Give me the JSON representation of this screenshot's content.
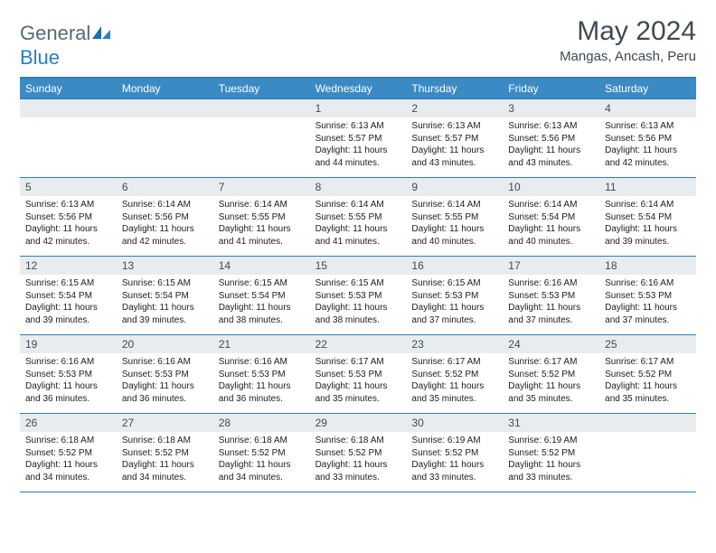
{
  "logo": {
    "part1": "General",
    "part2": "Blue"
  },
  "title": "May 2024",
  "subtitle": "Mangas, Ancash, Peru",
  "colors": {
    "header_bg": "#3b8ac4",
    "header_text": "#ffffff",
    "border": "#2a7fbf",
    "daynum_bg": "#e9ecee",
    "text": "#404a52",
    "info_text": "#1c1c1c",
    "background": "#ffffff"
  },
  "day_names": [
    "Sunday",
    "Monday",
    "Tuesday",
    "Wednesday",
    "Thursday",
    "Friday",
    "Saturday"
  ],
  "weeks": [
    [
      {
        "n": "",
        "sr": "",
        "ss": "",
        "dl": ""
      },
      {
        "n": "",
        "sr": "",
        "ss": "",
        "dl": ""
      },
      {
        "n": "",
        "sr": "",
        "ss": "",
        "dl": ""
      },
      {
        "n": "1",
        "sr": "Sunrise: 6:13 AM",
        "ss": "Sunset: 5:57 PM",
        "dl": "Daylight: 11 hours and 44 minutes."
      },
      {
        "n": "2",
        "sr": "Sunrise: 6:13 AM",
        "ss": "Sunset: 5:57 PM",
        "dl": "Daylight: 11 hours and 43 minutes."
      },
      {
        "n": "3",
        "sr": "Sunrise: 6:13 AM",
        "ss": "Sunset: 5:56 PM",
        "dl": "Daylight: 11 hours and 43 minutes."
      },
      {
        "n": "4",
        "sr": "Sunrise: 6:13 AM",
        "ss": "Sunset: 5:56 PM",
        "dl": "Daylight: 11 hours and 42 minutes."
      }
    ],
    [
      {
        "n": "5",
        "sr": "Sunrise: 6:13 AM",
        "ss": "Sunset: 5:56 PM",
        "dl": "Daylight: 11 hours and 42 minutes."
      },
      {
        "n": "6",
        "sr": "Sunrise: 6:14 AM",
        "ss": "Sunset: 5:56 PM",
        "dl": "Daylight: 11 hours and 42 minutes."
      },
      {
        "n": "7",
        "sr": "Sunrise: 6:14 AM",
        "ss": "Sunset: 5:55 PM",
        "dl": "Daylight: 11 hours and 41 minutes."
      },
      {
        "n": "8",
        "sr": "Sunrise: 6:14 AM",
        "ss": "Sunset: 5:55 PM",
        "dl": "Daylight: 11 hours and 41 minutes."
      },
      {
        "n": "9",
        "sr": "Sunrise: 6:14 AM",
        "ss": "Sunset: 5:55 PM",
        "dl": "Daylight: 11 hours and 40 minutes."
      },
      {
        "n": "10",
        "sr": "Sunrise: 6:14 AM",
        "ss": "Sunset: 5:54 PM",
        "dl": "Daylight: 11 hours and 40 minutes."
      },
      {
        "n": "11",
        "sr": "Sunrise: 6:14 AM",
        "ss": "Sunset: 5:54 PM",
        "dl": "Daylight: 11 hours and 39 minutes."
      }
    ],
    [
      {
        "n": "12",
        "sr": "Sunrise: 6:15 AM",
        "ss": "Sunset: 5:54 PM",
        "dl": "Daylight: 11 hours and 39 minutes."
      },
      {
        "n": "13",
        "sr": "Sunrise: 6:15 AM",
        "ss": "Sunset: 5:54 PM",
        "dl": "Daylight: 11 hours and 39 minutes."
      },
      {
        "n": "14",
        "sr": "Sunrise: 6:15 AM",
        "ss": "Sunset: 5:54 PM",
        "dl": "Daylight: 11 hours and 38 minutes."
      },
      {
        "n": "15",
        "sr": "Sunrise: 6:15 AM",
        "ss": "Sunset: 5:53 PM",
        "dl": "Daylight: 11 hours and 38 minutes."
      },
      {
        "n": "16",
        "sr": "Sunrise: 6:15 AM",
        "ss": "Sunset: 5:53 PM",
        "dl": "Daylight: 11 hours and 37 minutes."
      },
      {
        "n": "17",
        "sr": "Sunrise: 6:16 AM",
        "ss": "Sunset: 5:53 PM",
        "dl": "Daylight: 11 hours and 37 minutes."
      },
      {
        "n": "18",
        "sr": "Sunrise: 6:16 AM",
        "ss": "Sunset: 5:53 PM",
        "dl": "Daylight: 11 hours and 37 minutes."
      }
    ],
    [
      {
        "n": "19",
        "sr": "Sunrise: 6:16 AM",
        "ss": "Sunset: 5:53 PM",
        "dl": "Daylight: 11 hours and 36 minutes."
      },
      {
        "n": "20",
        "sr": "Sunrise: 6:16 AM",
        "ss": "Sunset: 5:53 PM",
        "dl": "Daylight: 11 hours and 36 minutes."
      },
      {
        "n": "21",
        "sr": "Sunrise: 6:16 AM",
        "ss": "Sunset: 5:53 PM",
        "dl": "Daylight: 11 hours and 36 minutes."
      },
      {
        "n": "22",
        "sr": "Sunrise: 6:17 AM",
        "ss": "Sunset: 5:53 PM",
        "dl": "Daylight: 11 hours and 35 minutes."
      },
      {
        "n": "23",
        "sr": "Sunrise: 6:17 AM",
        "ss": "Sunset: 5:52 PM",
        "dl": "Daylight: 11 hours and 35 minutes."
      },
      {
        "n": "24",
        "sr": "Sunrise: 6:17 AM",
        "ss": "Sunset: 5:52 PM",
        "dl": "Daylight: 11 hours and 35 minutes."
      },
      {
        "n": "25",
        "sr": "Sunrise: 6:17 AM",
        "ss": "Sunset: 5:52 PM",
        "dl": "Daylight: 11 hours and 35 minutes."
      }
    ],
    [
      {
        "n": "26",
        "sr": "Sunrise: 6:18 AM",
        "ss": "Sunset: 5:52 PM",
        "dl": "Daylight: 11 hours and 34 minutes."
      },
      {
        "n": "27",
        "sr": "Sunrise: 6:18 AM",
        "ss": "Sunset: 5:52 PM",
        "dl": "Daylight: 11 hours and 34 minutes."
      },
      {
        "n": "28",
        "sr": "Sunrise: 6:18 AM",
        "ss": "Sunset: 5:52 PM",
        "dl": "Daylight: 11 hours and 34 minutes."
      },
      {
        "n": "29",
        "sr": "Sunrise: 6:18 AM",
        "ss": "Sunset: 5:52 PM",
        "dl": "Daylight: 11 hours and 33 minutes."
      },
      {
        "n": "30",
        "sr": "Sunrise: 6:19 AM",
        "ss": "Sunset: 5:52 PM",
        "dl": "Daylight: 11 hours and 33 minutes."
      },
      {
        "n": "31",
        "sr": "Sunrise: 6:19 AM",
        "ss": "Sunset: 5:52 PM",
        "dl": "Daylight: 11 hours and 33 minutes."
      },
      {
        "n": "",
        "sr": "",
        "ss": "",
        "dl": ""
      }
    ]
  ]
}
